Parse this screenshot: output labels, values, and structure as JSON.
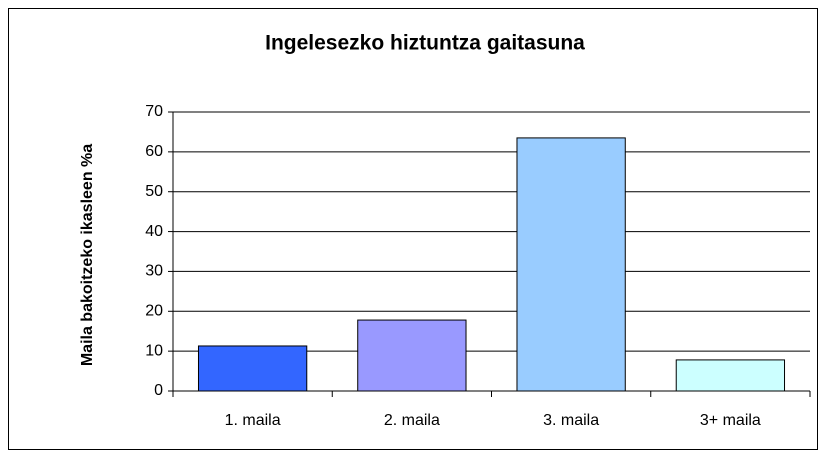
{
  "chart_data": {
    "type": "bar",
    "title": "Ingelesezko hiztuntza gaitasuna",
    "y_label": "Maila bakoitzeko ikasleen %a",
    "categories": [
      "1. maila",
      "2. maila",
      "3. maila",
      "3+ maila"
    ],
    "values": [
      11.3,
      17.8,
      63.5,
      7.8
    ],
    "colors": [
      "#3366ff",
      "#9999ff",
      "#99ccff",
      "#ccffff"
    ],
    "ylim": [
      0,
      70
    ],
    "yticks": [
      0,
      10,
      20,
      30,
      40,
      50,
      60,
      70
    ],
    "grid": true
  }
}
